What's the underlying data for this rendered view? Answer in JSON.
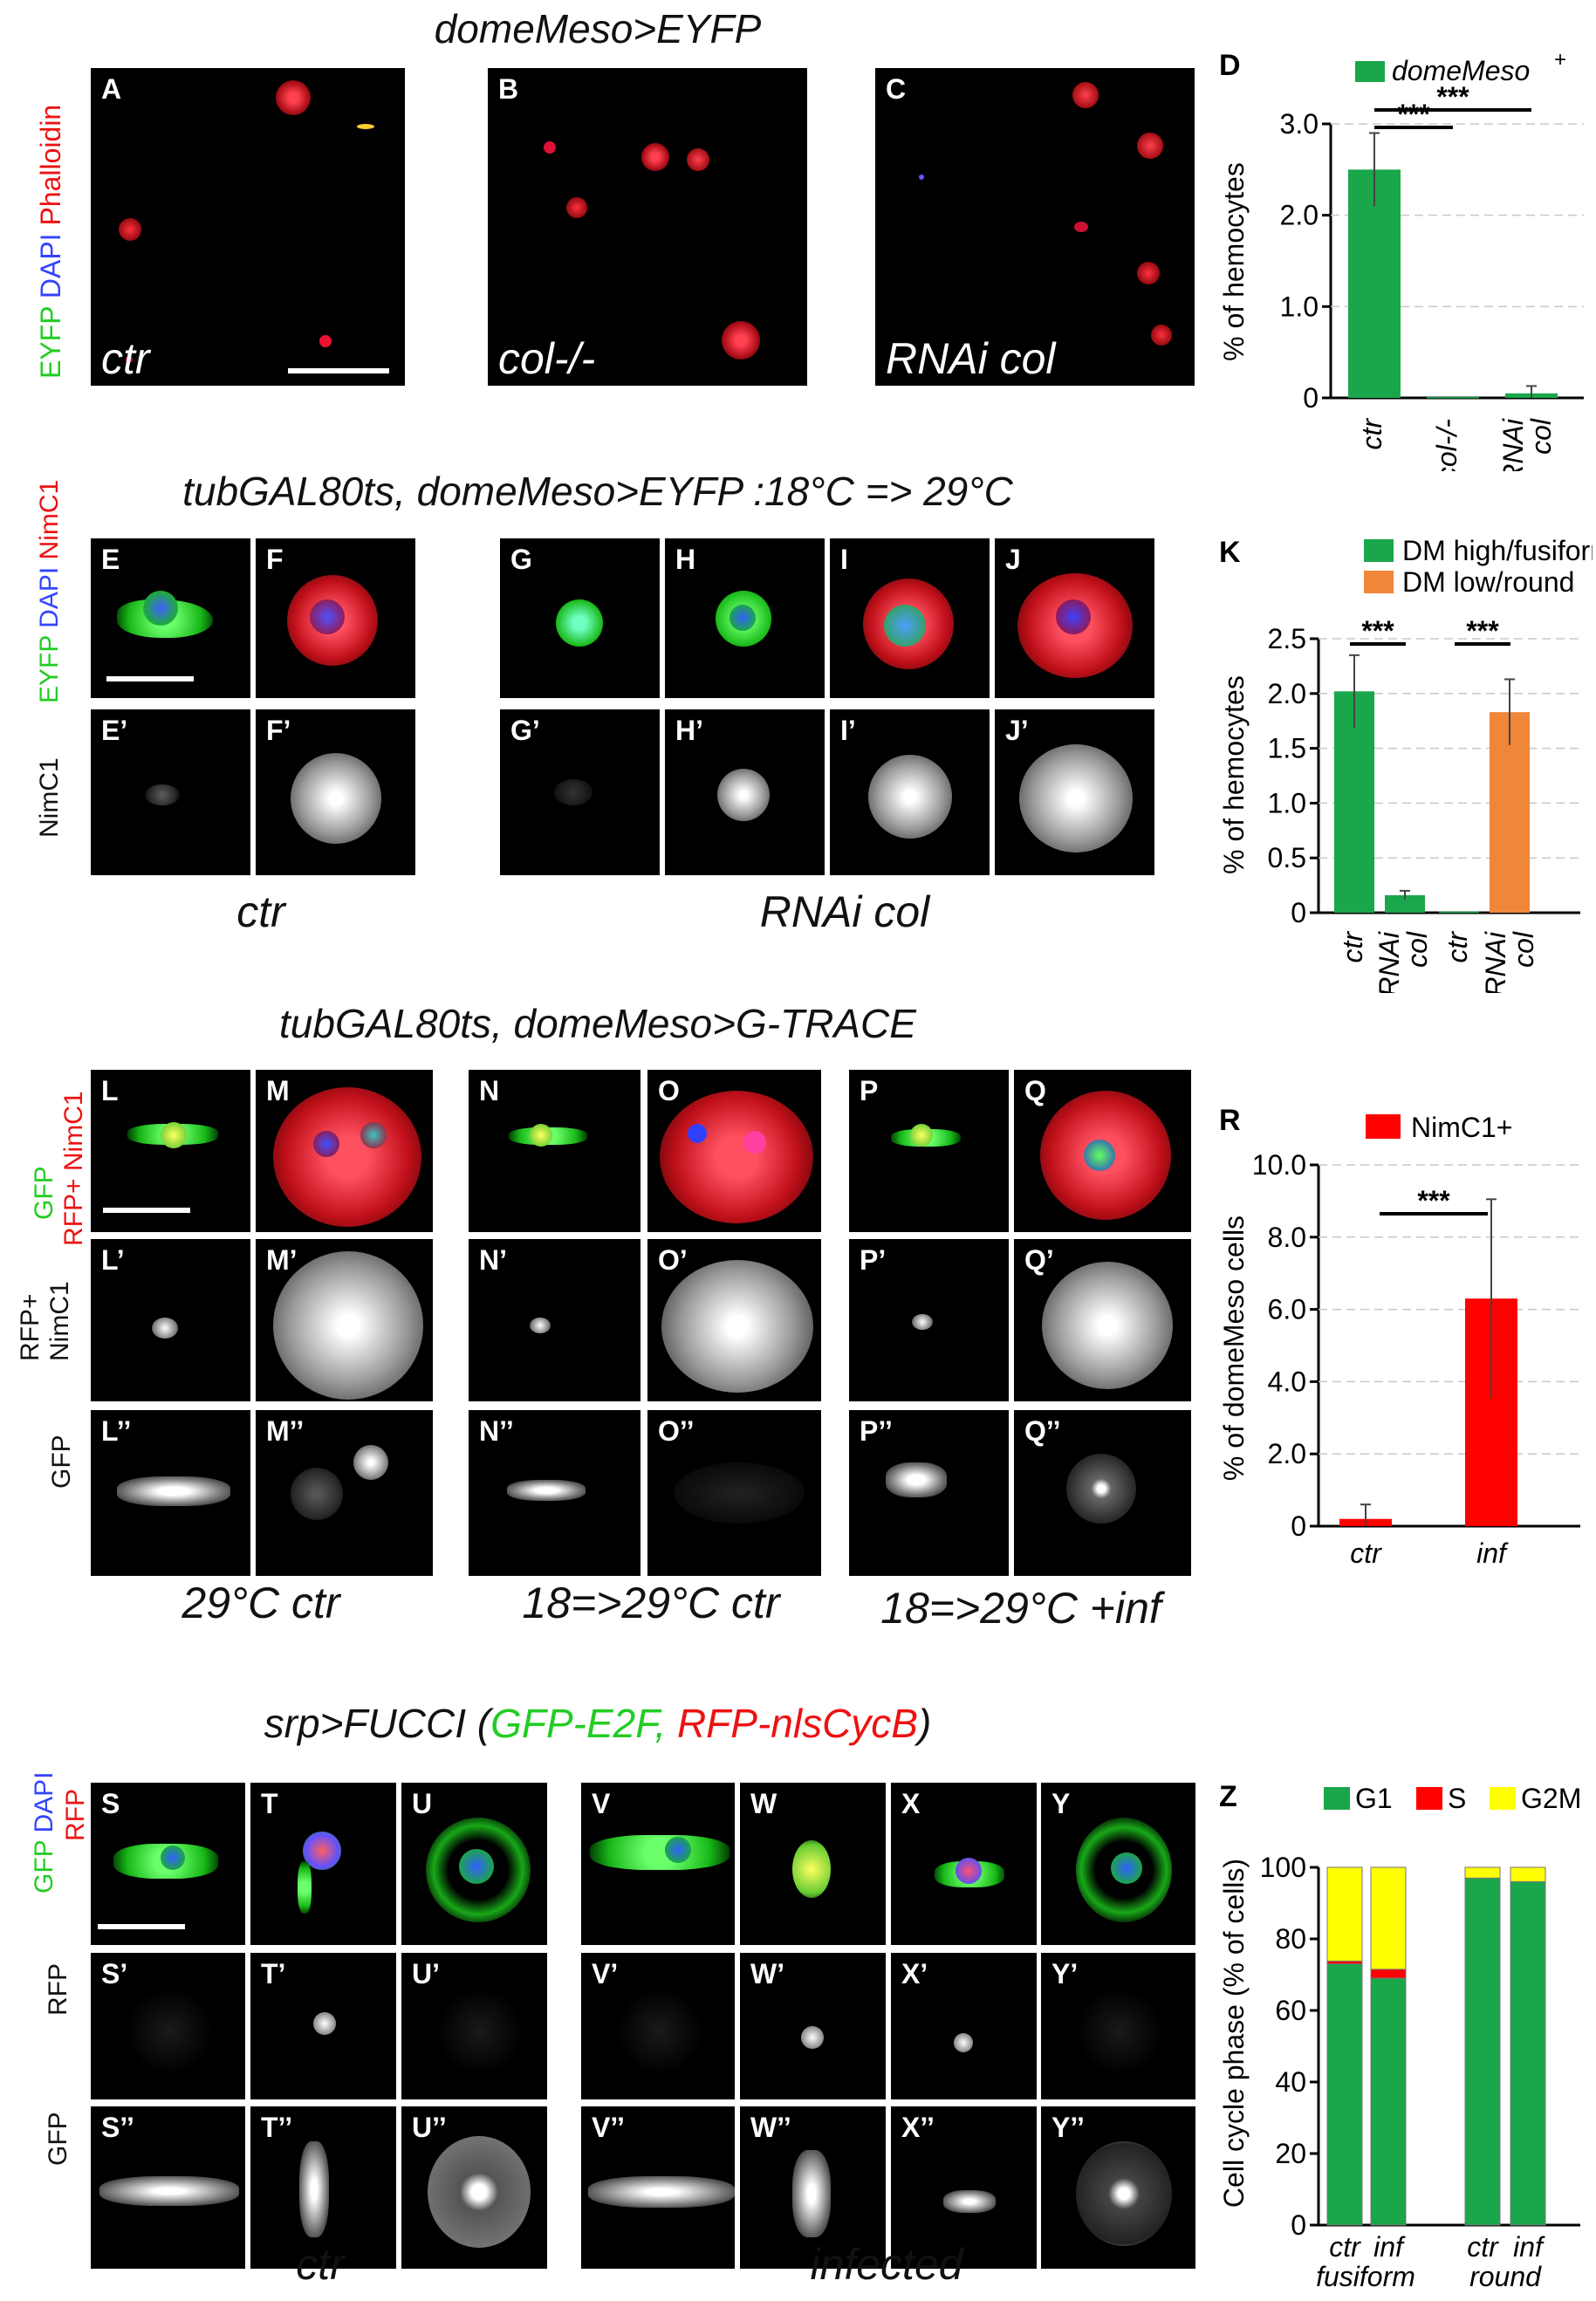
{
  "titles": {
    "row1": "domeMeso>EYFP",
    "row2": "tubGAL80ts, domeMeso>EYFP :18°C => 29°C",
    "row3": "tubGAL80ts, domeMeso>G-TRACE",
    "row4_prefix": "srp>FUCCI (",
    "row4_green": "GFP-E2F,",
    "row4_red": " RFP-nlsCycB",
    "row4_suffix": ")"
  },
  "row1": {
    "stain": {
      "green": "EYFP",
      "blue": "DAPI",
      "red": "Phalloidin"
    },
    "panels": [
      {
        "letter": "A",
        "caption": "ctr"
      },
      {
        "letter": "B",
        "caption": "col-/-"
      },
      {
        "letter": "C",
        "caption": "RNAi col"
      }
    ]
  },
  "row2": {
    "stain_top": {
      "green": "EYFP",
      "blue": "DAPI",
      "red": "NimC1"
    },
    "stain_bottom": "NimC1",
    "top_letters": [
      "E",
      "F",
      "G",
      "H",
      "I",
      "J"
    ],
    "bottom_letters": [
      "E’",
      "F’",
      "G’",
      "H’",
      "I’",
      "J’"
    ],
    "groups": [
      "ctr",
      "RNAi col"
    ]
  },
  "row3": {
    "stain_top": {
      "green": "GFP",
      "red1": "RFP+",
      "red2": "NimC1"
    },
    "stain_mid": [
      "RFP+",
      "NimC1"
    ],
    "stain_bottom": "GFP",
    "top_letters": [
      "L",
      "M",
      "N",
      "O",
      "P",
      "Q"
    ],
    "mid_letters": [
      "L’",
      "M’",
      "N’",
      "O’",
      "P’",
      "Q’"
    ],
    "bottom_letters": [
      "L’’",
      "M’’",
      "N’’",
      "O’’",
      "P’’",
      "Q’’"
    ],
    "groups": [
      "29°C ctr",
      "18=>29°C ctr",
      "18=>29°C +inf"
    ]
  },
  "row4": {
    "stain_top": {
      "green": "GFP",
      "blue": "DAPI",
      "red": "RFP"
    },
    "stain_mid": "RFP",
    "stain_bottom": "GFP",
    "top_letters": [
      "S",
      "T",
      "U",
      "V",
      "W",
      "X",
      "Y"
    ],
    "mid_letters": [
      "S’",
      "T’",
      "U’",
      "V’",
      "W’",
      "X’",
      "Y’"
    ],
    "bottom_letters": [
      "S’’",
      "T’’",
      "U’’",
      "V’’",
      "W’’",
      "X’’",
      "Y’’"
    ],
    "groups": [
      "ctr",
      "infected"
    ]
  },
  "colors": {
    "green": "#1aa64a",
    "orange": "#f0863a",
    "red": "#ff0000",
    "yellow": "#ffff00",
    "grid": "#c8c8c8"
  },
  "chart_data": [
    {
      "panel": "D",
      "type": "bar",
      "categories": [
        "ctr",
        "col-/-",
        "RNAi col"
      ],
      "series": [
        {
          "name": "domeMeso+",
          "values": [
            2.5,
            0.01,
            0.05
          ],
          "errors": [
            0.4,
            0,
            0.08
          ]
        }
      ],
      "ylabel": "% of hemocytes",
      "ylim": [
        0,
        3.0
      ],
      "yticks": [
        "0",
        "1.0",
        "2.0",
        "3.0"
      ],
      "significance": [
        {
          "between": [
            "ctr",
            "col-/-"
          ],
          "label": "***"
        },
        {
          "between": [
            "ctr",
            "RNAi col"
          ],
          "label": "***"
        }
      ],
      "grid": true,
      "legend": "top-right"
    },
    {
      "panel": "K",
      "type": "bar",
      "categories": [
        "ctr",
        "RNAi col",
        "ctr",
        "RNAi col"
      ],
      "series": [
        {
          "name": "DM high/fusiform",
          "values": [
            2.02,
            0.16,
            0.01,
            null
          ],
          "errors": [
            0.33,
            0.04,
            0,
            null
          ]
        },
        {
          "name": "DM low/round",
          "values": [
            null,
            null,
            null,
            1.83
          ],
          "errors": [
            null,
            null,
            null,
            0.3
          ]
        }
      ],
      "ylabel": "% of hemocytes",
      "ylim": [
        0,
        2.5
      ],
      "yticks": [
        "0",
        "0.5",
        "1.0",
        "1.5",
        "2.0",
        "2.5"
      ],
      "significance": [
        {
          "between": [
            "ctr",
            "RNAi col"
          ],
          "label": "***"
        },
        {
          "between": [
            "ctr",
            "RNAi col"
          ],
          "label": "***"
        }
      ],
      "grid": true,
      "legend": "top"
    },
    {
      "panel": "R",
      "type": "bar",
      "categories": [
        "ctr",
        "inf"
      ],
      "series": [
        {
          "name": "NimC1+",
          "values": [
            0.2,
            6.3
          ],
          "errors": [
            0.4,
            2.75
          ]
        }
      ],
      "ylabel": "% of domeMeso cells",
      "ylim": [
        0,
        10.0
      ],
      "yticks": [
        "0",
        "2.0",
        "4.0",
        "6.0",
        "8.0",
        "10.0"
      ],
      "significance": [
        {
          "between": [
            "ctr",
            "inf"
          ],
          "label": "***"
        }
      ],
      "grid": true,
      "legend": "top"
    },
    {
      "panel": "Z",
      "type": "bar",
      "stacked": true,
      "categories": [
        "ctr",
        "inf",
        "ctr",
        "inf"
      ],
      "group_labels": [
        "fusiform",
        "round"
      ],
      "series": [
        {
          "name": "G1",
          "values": [
            73,
            69,
            97,
            96
          ]
        },
        {
          "name": "S",
          "values": [
            0.8,
            2.5,
            0,
            0
          ]
        },
        {
          "name": "G2M",
          "values": [
            26.2,
            28.5,
            3,
            4
          ]
        }
      ],
      "ylabel": "Cell cycle phase (% of cells)",
      "ylim": [
        0,
        100
      ],
      "yticks": [
        "0",
        "20",
        "40",
        "60",
        "80",
        "100"
      ],
      "grid": false,
      "legend": "top"
    }
  ]
}
